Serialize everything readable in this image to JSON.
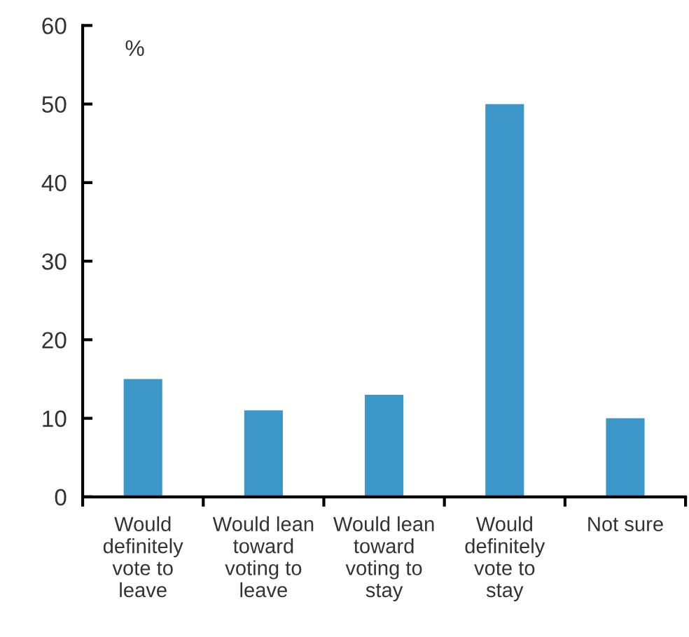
{
  "chart_data": {
    "type": "bar",
    "ylabel": "%",
    "categories": [
      "Would\ndefinitely\nvote to\nleave",
      "Would lean\ntoward\nvoting to\nleave",
      "Would lean\ntoward\nvoting to\nstay",
      "Would\ndefinitely\nvote to\nstay",
      "Not sure"
    ],
    "values": [
      15,
      11,
      13,
      50,
      10
    ],
    "color": "#3c96c8",
    "ylim": [
      0,
      60
    ],
    "yticks": [
      0,
      10,
      20,
      30,
      40,
      50,
      60
    ],
    "grid": false,
    "legend": false
  }
}
